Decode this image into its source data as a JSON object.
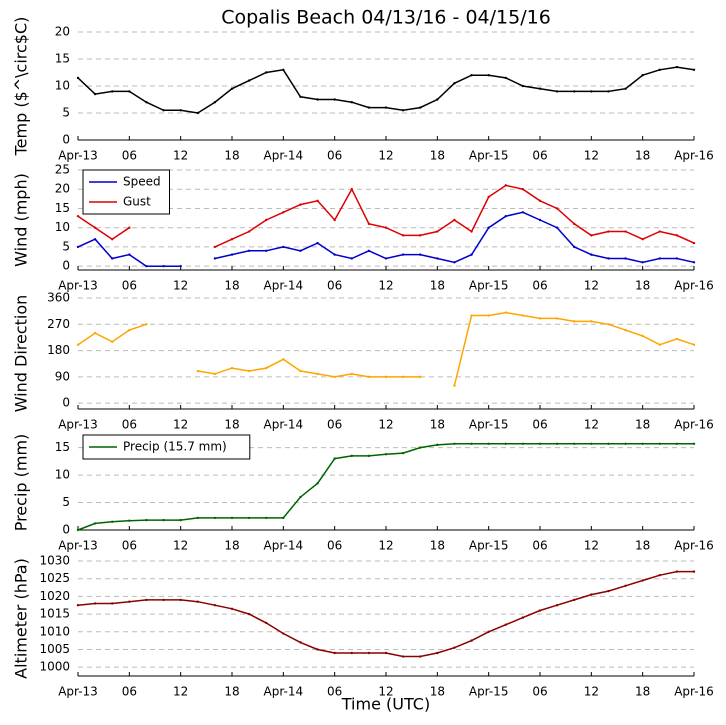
{
  "chart_data": [
    {
      "type": "line",
      "title": "Copalis Beach 04/13/16 - 04/15/16",
      "ylabel": "Temp ($^\\circ$C)",
      "x": [
        0,
        2,
        4,
        6,
        8,
        10,
        12,
        14,
        16,
        18,
        20,
        22,
        24,
        26,
        28,
        30,
        32,
        34,
        36,
        38,
        40,
        42,
        44,
        46,
        48,
        50,
        52,
        54,
        56,
        58,
        60,
        62,
        64,
        66,
        68,
        70,
        72
      ],
      "xlim": [
        0,
        72
      ],
      "xticks": [
        {
          "value": 0,
          "label": "Apr-13"
        },
        {
          "value": 6,
          "label": "06"
        },
        {
          "value": 12,
          "label": "12"
        },
        {
          "value": 18,
          "label": "18"
        },
        {
          "value": 24,
          "label": "Apr-14"
        },
        {
          "value": 30,
          "label": "06"
        },
        {
          "value": 36,
          "label": "12"
        },
        {
          "value": 42,
          "label": "18"
        },
        {
          "value": 48,
          "label": "Apr-15"
        },
        {
          "value": 54,
          "label": "06"
        },
        {
          "value": 60,
          "label": "12"
        },
        {
          "value": 66,
          "label": "18"
        },
        {
          "value": 72,
          "label": "Apr-16"
        }
      ],
      "ylim": [
        0,
        20
      ],
      "yticks": [
        0,
        5,
        10,
        15,
        20
      ],
      "grid": true,
      "series": [
        {
          "name": "Temp",
          "color": "#000000",
          "values": [
            11.5,
            8.5,
            9,
            9,
            7,
            5.5,
            5.5,
            5,
            7,
            9.5,
            11,
            12.5,
            13,
            8,
            7.5,
            7.5,
            7,
            6,
            6,
            5.5,
            6,
            7.5,
            10.5,
            12,
            12,
            11.5,
            10,
            9.5,
            9,
            9,
            9,
            9,
            9.5,
            12,
            13,
            13.5,
            13
          ]
        }
      ]
    },
    {
      "type": "line",
      "ylabel": "Wind (mph)",
      "x": [
        0,
        2,
        4,
        6,
        8,
        10,
        12,
        14,
        16,
        18,
        20,
        22,
        24,
        26,
        28,
        30,
        32,
        34,
        36,
        38,
        40,
        42,
        44,
        46,
        48,
        50,
        52,
        54,
        56,
        58,
        60,
        62,
        64,
        66,
        68,
        70,
        72
      ],
      "xlim": [
        0,
        72
      ],
      "xticks": [
        {
          "value": 0,
          "label": "Apr-13"
        },
        {
          "value": 6,
          "label": "06"
        },
        {
          "value": 12,
          "label": "12"
        },
        {
          "value": 18,
          "label": "18"
        },
        {
          "value": 24,
          "label": "Apr-14"
        },
        {
          "value": 30,
          "label": "06"
        },
        {
          "value": 36,
          "label": "12"
        },
        {
          "value": 42,
          "label": "18"
        },
        {
          "value": 48,
          "label": "Apr-15"
        },
        {
          "value": 54,
          "label": "06"
        },
        {
          "value": 60,
          "label": "12"
        },
        {
          "value": 66,
          "label": "18"
        },
        {
          "value": 72,
          "label": "Apr-16"
        }
      ],
      "ylim": [
        -1,
        25
      ],
      "yticks": [
        0,
        5,
        10,
        15,
        20,
        25
      ],
      "grid": true,
      "legend": "upper left",
      "series": [
        {
          "name": "Speed",
          "color": "#0000cc",
          "values": [
            5,
            7,
            2,
            3,
            0,
            0,
            0,
            null,
            2,
            3,
            4,
            4,
            5,
            4,
            6,
            3,
            2,
            4,
            2,
            3,
            3,
            2,
            1,
            3,
            10,
            13,
            14,
            12,
            10,
            5,
            3,
            2,
            2,
            1,
            2,
            2,
            1
          ]
        },
        {
          "name": "Gust",
          "color": "#dd0000",
          "values": [
            13,
            10,
            7,
            10,
            null,
            null,
            null,
            null,
            5,
            7,
            9,
            12,
            14,
            16,
            17,
            12,
            20,
            11,
            10,
            8,
            8,
            9,
            12,
            9,
            18,
            21,
            20,
            17,
            15,
            11,
            8,
            9,
            9,
            7,
            9,
            8,
            6
          ]
        }
      ]
    },
    {
      "type": "line",
      "ylabel": "Wind Direction",
      "x": [
        0,
        2,
        4,
        6,
        8,
        10,
        12,
        14,
        16,
        18,
        20,
        22,
        24,
        26,
        28,
        30,
        32,
        34,
        36,
        38,
        40,
        42,
        44,
        46,
        48,
        50,
        52,
        54,
        56,
        58,
        60,
        62,
        64,
        66,
        68,
        70,
        72
      ],
      "xlim": [
        0,
        72
      ],
      "xticks": [
        {
          "value": 0,
          "label": "Apr-13"
        },
        {
          "value": 6,
          "label": "06"
        },
        {
          "value": 12,
          "label": "12"
        },
        {
          "value": 18,
          "label": "18"
        },
        {
          "value": 24,
          "label": "Apr-14"
        },
        {
          "value": 30,
          "label": "06"
        },
        {
          "value": 36,
          "label": "12"
        },
        {
          "value": 42,
          "label": "18"
        },
        {
          "value": 48,
          "label": "Apr-15"
        },
        {
          "value": 54,
          "label": "06"
        },
        {
          "value": 60,
          "label": "12"
        },
        {
          "value": 66,
          "label": "18"
        },
        {
          "value": 72,
          "label": "Apr-16"
        }
      ],
      "ylim": [
        -20,
        360
      ],
      "yticks": [
        0,
        90,
        180,
        270,
        360
      ],
      "grid": true,
      "series": [
        {
          "name": "Direction",
          "color": "#ffa500",
          "values": [
            200,
            240,
            210,
            250,
            270,
            null,
            null,
            110,
            100,
            120,
            110,
            120,
            150,
            110,
            100,
            90,
            100,
            90,
            90,
            90,
            90,
            null,
            60,
            300,
            300,
            310,
            300,
            290,
            290,
            280,
            280,
            270,
            250,
            230,
            200,
            220,
            200
          ]
        }
      ]
    },
    {
      "type": "line",
      "ylabel": "Precip (mm)",
      "x": [
        0,
        2,
        4,
        6,
        8,
        10,
        12,
        14,
        16,
        18,
        20,
        22,
        24,
        26,
        28,
        30,
        32,
        34,
        36,
        38,
        40,
        42,
        44,
        46,
        48,
        50,
        52,
        54,
        56,
        58,
        60,
        62,
        64,
        66,
        68,
        70,
        72
      ],
      "xlim": [
        0,
        72
      ],
      "xticks": [
        {
          "value": 0,
          "label": "Apr-13"
        },
        {
          "value": 6,
          "label": "06"
        },
        {
          "value": 12,
          "label": "12"
        },
        {
          "value": 18,
          "label": "18"
        },
        {
          "value": 24,
          "label": "Apr-14"
        },
        {
          "value": 30,
          "label": "06"
        },
        {
          "value": 36,
          "label": "12"
        },
        {
          "value": 42,
          "label": "18"
        },
        {
          "value": 48,
          "label": "Apr-15"
        },
        {
          "value": 54,
          "label": "06"
        },
        {
          "value": 60,
          "label": "12"
        },
        {
          "value": 66,
          "label": "18"
        },
        {
          "value": 72,
          "label": "Apr-16"
        }
      ],
      "ylim": [
        0,
        17.3
      ],
      "yticks": [
        0,
        5,
        10,
        15
      ],
      "grid": true,
      "legend": "upper left",
      "series": [
        {
          "name": "Precip (15.7 mm)",
          "color": "#006400",
          "values": [
            0,
            1.2,
            1.5,
            1.7,
            1.8,
            1.8,
            1.8,
            2.2,
            2.2,
            2.2,
            2.2,
            2.2,
            2.2,
            6,
            8.5,
            13,
            13.5,
            13.5,
            13.8,
            14,
            15,
            15.5,
            15.7,
            15.7,
            15.7,
            15.7,
            15.7,
            15.7,
            15.7,
            15.7,
            15.7,
            15.7,
            15.7,
            15.7,
            15.7,
            15.7,
            15.7
          ]
        }
      ]
    },
    {
      "type": "line",
      "ylabel": "Altimeter (hPa)",
      "xlabel": "Time (UTC)",
      "x": [
        0,
        2,
        4,
        6,
        8,
        10,
        12,
        14,
        16,
        18,
        20,
        22,
        24,
        26,
        28,
        30,
        32,
        34,
        36,
        38,
        40,
        42,
        44,
        46,
        48,
        50,
        52,
        54,
        56,
        58,
        60,
        62,
        64,
        66,
        68,
        70,
        72
      ],
      "xlim": [
        0,
        72
      ],
      "xticks": [
        {
          "value": 0,
          "label": "Apr-13"
        },
        {
          "value": 6,
          "label": "06"
        },
        {
          "value": 12,
          "label": "12"
        },
        {
          "value": 18,
          "label": "18"
        },
        {
          "value": 24,
          "label": "Apr-14"
        },
        {
          "value": 30,
          "label": "06"
        },
        {
          "value": 36,
          "label": "12"
        },
        {
          "value": 42,
          "label": "18"
        },
        {
          "value": 48,
          "label": "Apr-15"
        },
        {
          "value": 54,
          "label": "06"
        },
        {
          "value": 60,
          "label": "12"
        },
        {
          "value": 66,
          "label": "18"
        },
        {
          "value": 72,
          "label": "Apr-16"
        }
      ],
      "ylim": [
        997.5,
        1030
      ],
      "yticks": [
        1000,
        1005,
        1010,
        1015,
        1020,
        1025,
        1030
      ],
      "grid": true,
      "series": [
        {
          "name": "Altimeter",
          "color": "#8b0000",
          "values": [
            1017.5,
            1018,
            1018,
            1018.5,
            1019,
            1019,
            1019,
            1018.5,
            1017.5,
            1016.5,
            1015,
            1012.5,
            1009.5,
            1007,
            1005,
            1004,
            1004,
            1004,
            1004,
            1003,
            1003,
            1004,
            1005.5,
            1007.5,
            1010,
            1012,
            1014,
            1016,
            1017.5,
            1019,
            1020.5,
            1021.5,
            1023,
            1024.5,
            1026,
            1027,
            1027
          ]
        }
      ]
    }
  ]
}
